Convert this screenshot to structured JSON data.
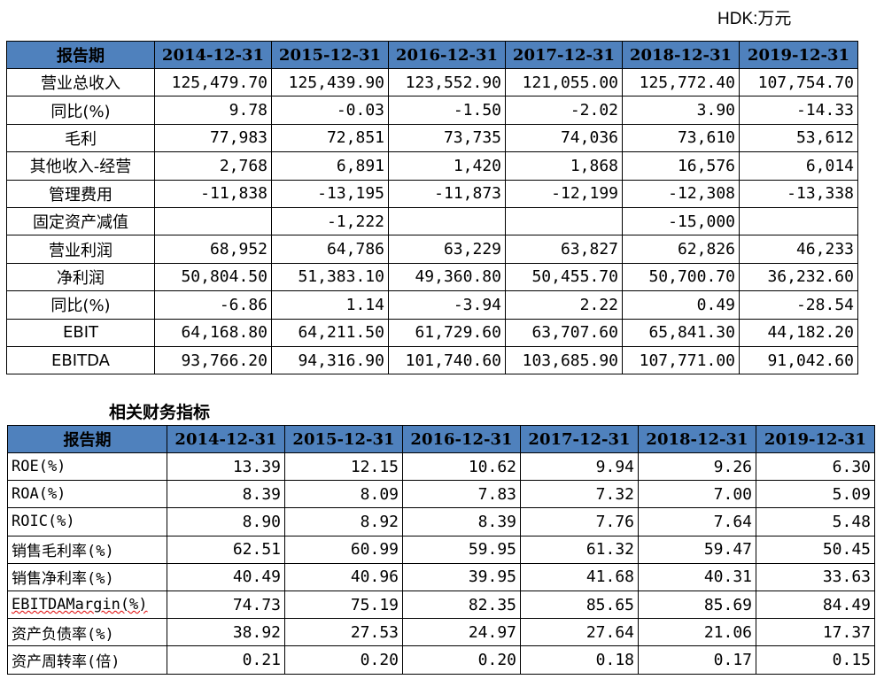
{
  "unit": "HDK:万元",
  "table1": {
    "header": [
      "报告期",
      "2014-12-31",
      "2015-12-31",
      "2016-12-31",
      "2017-12-31",
      "2018-12-31",
      "2019-12-31"
    ],
    "rows": [
      [
        "营业总收入",
        "125,479.70",
        "125,439.90",
        "123,552.90",
        "121,055.00",
        "125,772.40",
        "107,754.70"
      ],
      [
        "同比(%)",
        "9.78",
        "-0.03",
        "-1.50",
        "-2.02",
        "3.90",
        "-14.33"
      ],
      [
        "毛利",
        "77,983",
        "72,851",
        "73,735",
        "74,036",
        "73,610",
        "53,612"
      ],
      [
        "其他收入-经营",
        "2,768",
        "6,891",
        "1,420",
        "1,868",
        "16,576",
        "6,014"
      ],
      [
        "管理费用",
        "-11,838",
        "-13,195",
        "-11,873",
        "-12,199",
        "-12,308",
        "-13,338"
      ],
      [
        "固定资产减值",
        "",
        "-1,222",
        "",
        "",
        "-15,000",
        ""
      ],
      [
        "营业利润",
        "68,952",
        "64,786",
        "63,229",
        "63,827",
        "62,826",
        "46,233"
      ],
      [
        "净利润",
        "50,804.50",
        "51,383.10",
        "49,360.80",
        "50,455.70",
        "50,700.70",
        "36,232.60"
      ],
      [
        "同比(%)",
        "-6.86",
        "1.14",
        "-3.94",
        "2.22",
        "0.49",
        "-28.54"
      ],
      [
        "EBIT",
        "64,168.80",
        "64,211.50",
        "61,729.60",
        "63,707.60",
        "65,841.30",
        "44,182.20"
      ],
      [
        "EBITDA",
        "93,766.20",
        "94,316.90",
        "101,740.60",
        "103,685.90",
        "107,771.00",
        "91,042.60"
      ]
    ]
  },
  "subtitle": "相关财务指标",
  "table2": {
    "header": [
      "报告期",
      "2014-12-31",
      "2015-12-31",
      "2016-12-31",
      "2017-12-31",
      "2018-12-31",
      "2019-12-31"
    ],
    "rows": [
      [
        "ROE(%)",
        "13.39",
        "12.15",
        "10.62",
        "9.94",
        "9.26",
        "6.30"
      ],
      [
        "ROA(%)",
        "8.39",
        "8.09",
        "7.83",
        "7.32",
        "7.00",
        "5.09"
      ],
      [
        "ROIC(%)",
        "8.90",
        "8.92",
        "8.39",
        "7.76",
        "7.64",
        "5.48"
      ],
      [
        "销售毛利率(%)",
        "62.51",
        "60.99",
        "59.95",
        "61.32",
        "59.47",
        "50.45"
      ],
      [
        "销售净利率(%)",
        "40.49",
        "40.96",
        "39.95",
        "41.68",
        "40.31",
        "33.63"
      ],
      [
        "EBITDAMargin(%)",
        "74.73",
        "75.19",
        "82.35",
        "85.65",
        "85.69",
        "84.49"
      ],
      [
        "资产负债率(%)",
        "38.92",
        "27.53",
        "24.97",
        "27.64",
        "21.06",
        "17.37"
      ],
      [
        "资产周转率(倍)",
        "0.21",
        "0.20",
        "0.20",
        "0.18",
        "0.17",
        "0.15"
      ]
    ]
  }
}
